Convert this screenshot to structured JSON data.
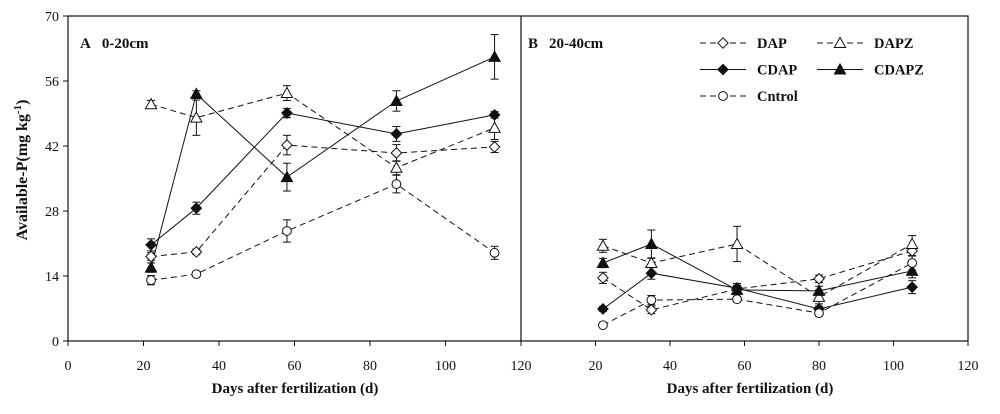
{
  "chart_data": [
    {
      "type": "line",
      "panel_label": "A",
      "title": "0-20cm",
      "xlabel": "Days after fertilization (d)",
      "ylabel": {
        "text": "Available-P(mg kg",
        "superscript": "-1",
        "suffix": ")"
      },
      "xlim": [
        0,
        120
      ],
      "ylim": [
        0,
        70
      ],
      "xticks": [
        0,
        20,
        40,
        60,
        80,
        100,
        120
      ],
      "yticks": [
        0,
        14,
        28,
        42,
        56,
        70
      ],
      "grid": false,
      "x": [
        22,
        34,
        58,
        87,
        113
      ],
      "series": [
        {
          "name": "DAP",
          "line": "dashed",
          "marker": "open-diamond",
          "values": [
            18.2,
            19.2,
            42.2,
            40.5,
            41.8
          ],
          "error": [
            0.8,
            0.6,
            2.1,
            1.8,
            1.2
          ]
        },
        {
          "name": "DAPZ",
          "line": "dashed",
          "marker": "open-triangle",
          "values": [
            51.0,
            48.1,
            53.4,
            37.3,
            45.9
          ],
          "error": [
            0.8,
            3.8,
            1.6,
            1.5,
            2.5
          ]
        },
        {
          "name": "CDAP",
          "line": "solid",
          "marker": "filled-diamond",
          "values": [
            20.7,
            28.6,
            49.1,
            44.6,
            48.7
          ],
          "error": [
            1.3,
            1.3,
            1.0,
            1.6,
            0.7
          ]
        },
        {
          "name": "CDAPZ",
          "line": "solid",
          "marker": "filled-triangle",
          "values": [
            15.8,
            53.2,
            35.3,
            51.7,
            61.2
          ],
          "error": [
            1.0,
            0.7,
            3.0,
            2.2,
            4.8
          ]
        },
        {
          "name": "Cntrol",
          "line": "dashed",
          "marker": "open-circle",
          "values": [
            13.1,
            14.4,
            23.7,
            33.8,
            19.0
          ],
          "error": [
            1.0,
            0.5,
            2.4,
            1.9,
            1.4
          ]
        }
      ]
    },
    {
      "type": "line",
      "panel_label": "B",
      "title": "20-40cm",
      "xlabel": "Days after fertilization (d)",
      "xlim": [
        0,
        120
      ],
      "ylim": [
        0,
        70
      ],
      "xticks": [
        20,
        40,
        60,
        80,
        100,
        120
      ],
      "grid": false,
      "legend": "top-right",
      "x": [
        22,
        35,
        58,
        80,
        105
      ],
      "series": [
        {
          "name": "DAP",
          "line": "dashed",
          "marker": "open-diamond",
          "values": [
            13.6,
            6.7,
            11.2,
            13.4,
            19.4
          ],
          "error": [
            1.2,
            0.8,
            0.8,
            0.8,
            1.0
          ]
        },
        {
          "name": "DAPZ",
          "line": "dashed",
          "marker": "open-triangle",
          "values": [
            20.5,
            16.8,
            20.9,
            9.5,
            20.9
          ],
          "error": [
            1.4,
            1.0,
            3.8,
            1.5,
            1.8
          ]
        },
        {
          "name": "CDAP",
          "line": "solid",
          "marker": "filled-diamond",
          "values": [
            6.9,
            14.6,
            11.4,
            6.9,
            11.6
          ],
          "error": [
            0.5,
            1.3,
            1.0,
            0.6,
            1.4
          ]
        },
        {
          "name": "CDAPZ",
          "line": "solid",
          "marker": "filled-triangle",
          "values": [
            16.8,
            20.9,
            11.0,
            10.8,
            15.1
          ],
          "error": [
            1.0,
            3.0,
            1.0,
            1.0,
            1.5
          ]
        },
        {
          "name": "Cntrol",
          "line": "dashed",
          "marker": "open-circle",
          "values": [
            3.4,
            8.8,
            9.0,
            6.0,
            16.8
          ],
          "error": [
            0.4,
            1.0,
            0.6,
            0.6,
            1.5
          ]
        }
      ]
    }
  ]
}
